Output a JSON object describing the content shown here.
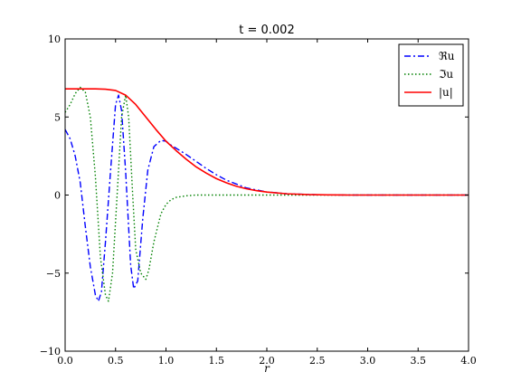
{
  "chart_data": {
    "type": "line",
    "title": "t = 0.002",
    "xlabel": "r",
    "ylabel": "",
    "xlim": [
      0.0,
      4.0
    ],
    "ylim": [
      -10,
      10
    ],
    "xticks": [
      "0.0",
      "0.5",
      "1.0",
      "1.5",
      "2.0",
      "2.5",
      "3.0",
      "3.5",
      "4.0"
    ],
    "xtick_values": [
      0.0,
      0.5,
      1.0,
      1.5,
      2.0,
      2.5,
      3.0,
      3.5,
      4.0
    ],
    "yticks": [
      "−10",
      "−5",
      "0",
      "5",
      "10"
    ],
    "ytick_values": [
      -10,
      -5,
      0,
      5,
      10
    ],
    "grid": false,
    "legend_position": "top-right",
    "series": [
      {
        "name": "ℜu",
        "color": "#0000ff",
        "style": "dashdot",
        "x": [
          0.0,
          0.05,
          0.1,
          0.15,
          0.2,
          0.25,
          0.3,
          0.33,
          0.36,
          0.4,
          0.45,
          0.5,
          0.53,
          0.56,
          0.6,
          0.65,
          0.68,
          0.72,
          0.77,
          0.82,
          0.88,
          0.95,
          1.0,
          1.05,
          1.1,
          1.2,
          1.3,
          1.4,
          1.5,
          1.6,
          1.8,
          2.0,
          2.2,
          2.5,
          2.8,
          3.0,
          3.5,
          4.0
        ],
        "y": [
          4.2,
          3.6,
          2.5,
          0.8,
          -2.0,
          -4.6,
          -6.4,
          -6.8,
          -6.2,
          -3.0,
          1.5,
          5.8,
          6.4,
          5.4,
          1.5,
          -4.5,
          -6.0,
          -5.5,
          -1.5,
          1.6,
          3.1,
          3.5,
          3.45,
          3.2,
          3.0,
          2.6,
          2.15,
          1.7,
          1.3,
          0.95,
          0.45,
          0.2,
          0.08,
          0.02,
          0.0,
          0.0,
          0.0,
          0.0
        ]
      },
      {
        "name": "ℑu",
        "color": "#008000",
        "style": "dotted",
        "x": [
          0.0,
          0.05,
          0.1,
          0.15,
          0.2,
          0.25,
          0.3,
          0.35,
          0.4,
          0.43,
          0.47,
          0.52,
          0.56,
          0.6,
          0.63,
          0.67,
          0.7,
          0.75,
          0.8,
          0.83,
          0.88,
          0.95,
          1.0,
          1.05,
          1.1,
          1.2,
          1.3,
          1.5,
          2.0,
          2.5,
          3.0,
          3.5,
          4.0
        ],
        "y": [
          5.3,
          5.8,
          6.5,
          6.9,
          6.6,
          5.0,
          1.2,
          -4.0,
          -6.4,
          -6.8,
          -5.0,
          0.5,
          5.0,
          6.4,
          5.0,
          0.0,
          -3.5,
          -5.0,
          -5.4,
          -4.8,
          -3.0,
          -1.2,
          -0.6,
          -0.3,
          -0.15,
          -0.05,
          0.0,
          0.0,
          0.0,
          0.0,
          0.0,
          0.0,
          0.0
        ]
      },
      {
        "name": "|u|",
        "color": "#ff0000",
        "style": "solid",
        "x": [
          0.0,
          0.1,
          0.2,
          0.3,
          0.4,
          0.5,
          0.6,
          0.7,
          0.8,
          0.9,
          1.0,
          1.1,
          1.2,
          1.3,
          1.4,
          1.5,
          1.6,
          1.7,
          1.8,
          1.9,
          2.0,
          2.2,
          2.4,
          2.6,
          2.8,
          3.0,
          3.5,
          4.0
        ],
        "y": [
          6.8,
          6.8,
          6.8,
          6.8,
          6.78,
          6.7,
          6.4,
          5.8,
          5.0,
          4.2,
          3.45,
          2.85,
          2.3,
          1.8,
          1.4,
          1.05,
          0.78,
          0.56,
          0.4,
          0.28,
          0.19,
          0.08,
          0.03,
          0.01,
          0.0,
          0.0,
          0.0,
          0.0
        ]
      }
    ]
  }
}
